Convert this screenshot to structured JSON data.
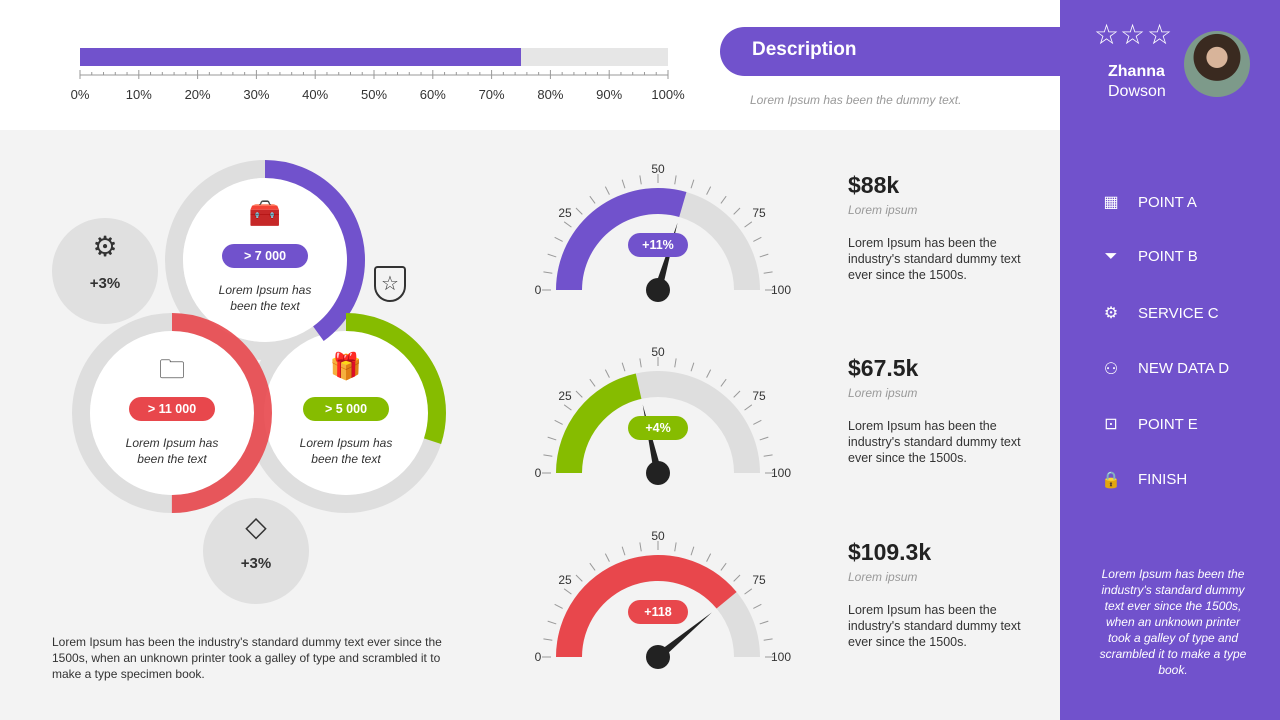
{
  "progress": {
    "value": 75,
    "ticks": [
      "0%",
      "10%",
      "20%",
      "30%",
      "40%",
      "50%",
      "60%",
      "70%",
      "80%",
      "90%",
      "100%"
    ],
    "fill_color": "#7152cc",
    "track_color": "#e6e6e6"
  },
  "header": {
    "title": "Description",
    "subtitle": "Lorem Ipsum has been the dummy text."
  },
  "profile": {
    "first_name": "Zhanna",
    "last_name": "Dowson",
    "stars": 3,
    "star_glyph": "☆"
  },
  "nav": [
    {
      "label": "POINT A",
      "icon": "calendar-icon",
      "glyph": "▦"
    },
    {
      "label": "POINT B",
      "icon": "funnel-icon",
      "glyph": "⏷"
    },
    {
      "label": "SERVICE C",
      "icon": "gear-icon",
      "glyph": "⚙"
    },
    {
      "label": "NEW DATA D",
      "icon": "users-icon",
      "glyph": "⚇"
    },
    {
      "label": "POINT E",
      "icon": "toolbox-icon",
      "glyph": "⊡"
    },
    {
      "label": "FINISH",
      "icon": "lock-icon",
      "glyph": "🔒"
    }
  ],
  "side_text": "Lorem Ipsum has been the industry's standard dummy text ever since the 1500s, when an unknown printer took a galley of type and scrambled it to make a type book.",
  "rings": [
    {
      "badge": "> 7 000",
      "text": "Lorem Ipsum has been the text",
      "color": "#7152cc",
      "percent": 40,
      "icon": "toolbox-icon",
      "glyph": "🧰"
    },
    {
      "badge": "> 11 000",
      "text": "Lorem Ipsum has been the text",
      "color": "#e8474c",
      "percent": 50,
      "icon": "folder-search-icon",
      "glyph": "🗀"
    },
    {
      "badge": "> 5 000",
      "text": "Lorem Ipsum has been the text",
      "color": "#86bc00",
      "percent": 30,
      "icon": "gift-icon",
      "glyph": "🎁"
    }
  ],
  "bubbles": [
    {
      "value": "+3%",
      "icon": "gear-icon",
      "glyph": "⚙"
    },
    {
      "value": "+3%",
      "icon": "diamond-icon",
      "glyph": "◇"
    }
  ],
  "shield_icon": "☆",
  "bottom_text": "Lorem Ipsum has been the industry's standard dummy text ever since the 1500s, when an unknown printer took a galley of type and scrambled it to make a type specimen book.",
  "gauges": [
    {
      "value": 59,
      "badge": "+11%",
      "color": "#7152cc",
      "amount": "$88k",
      "sub": "Lorem ipsum",
      "text": "Lorem Ipsum has been the industry's standard dummy text ever since the 1500s."
    },
    {
      "value": 43,
      "badge": "+4%",
      "color": "#86bc00",
      "amount": "$67.5k",
      "sub": "Lorem ipsum",
      "text": "Lorem Ipsum has been the industry's standard dummy text ever since the 1500s."
    },
    {
      "value": 78,
      "badge": "+118",
      "color": "#e8474c",
      "amount": "$109.3k",
      "sub": "Lorem ipsum",
      "text": "Lorem Ipsum has been the industry's standard dummy text ever since the 1500s."
    }
  ],
  "gauge_scale": [
    "0",
    "25",
    "50",
    "75",
    "100"
  ],
  "colors": {
    "accent": "#7152cc",
    "track": "#e0e0e0",
    "needle": "#222222"
  }
}
